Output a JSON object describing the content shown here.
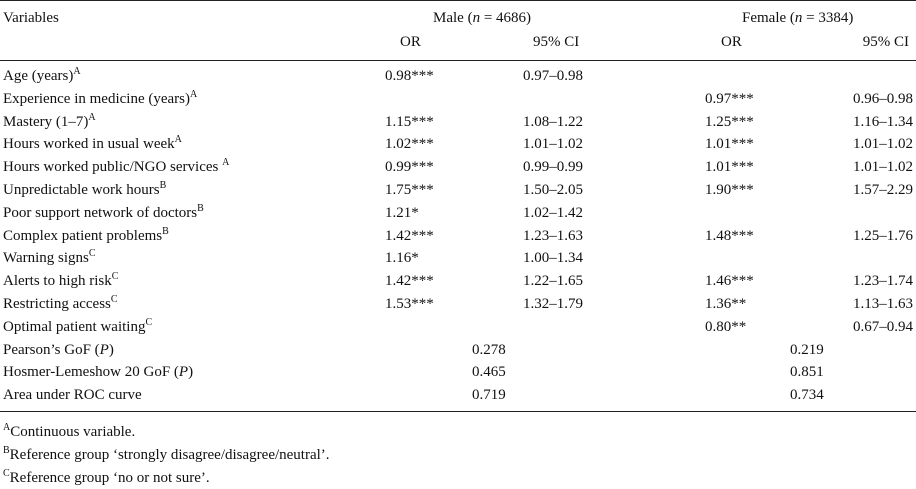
{
  "header": {
    "variables": "Variables",
    "male_group": "Male (n = 4686)",
    "male_label": "Male (",
    "male_n": "n",
    "male_count": " = 4686)",
    "female_label": "Female (",
    "female_n": "n",
    "female_count": " = 3384)",
    "or_label": "OR",
    "ci_label": "95% CI"
  },
  "rows": [
    {
      "variable": "Age (years)",
      "sup": "A",
      "male_or": "0.98***",
      "male_ci": "0.97–0.98",
      "female_or": "",
      "female_ci": ""
    },
    {
      "variable": "Experience in medicine (years)",
      "sup": "A",
      "male_or": "",
      "male_ci": "",
      "female_or": "0.97***",
      "female_ci": "0.96–0.98"
    },
    {
      "variable": "Mastery (1–7)",
      "sup": "A",
      "male_or": "1.15***",
      "male_ci": "1.08–1.22",
      "female_or": "1.25***",
      "female_ci": "1.16–1.34"
    },
    {
      "variable": "Hours worked in usual week",
      "sup": "A",
      "male_or": "1.02***",
      "male_ci": "1.01–1.02",
      "female_or": "1.01***",
      "female_ci": "1.01–1.02"
    },
    {
      "variable": "Hours worked public/NGO services ",
      "sup": "A",
      "male_or": "0.99***",
      "male_ci": "0.99–0.99",
      "female_or": "1.01***",
      "female_ci": "1.01–1.02"
    },
    {
      "variable": "Unpredictable work hours",
      "sup": "B",
      "male_or": "1.75***",
      "male_ci": "1.50–2.05",
      "female_or": "1.90***",
      "female_ci": "1.57–2.29"
    },
    {
      "variable": "Poor support network of doctors",
      "sup": "B",
      "male_or": "1.21*",
      "male_ci": "1.02–1.42",
      "female_or": "",
      "female_ci": ""
    },
    {
      "variable": "Complex patient problems",
      "sup": "B",
      "male_or": "1.42***",
      "male_ci": "1.23–1.63",
      "female_or": "1.48***",
      "female_ci": "1.25–1.76"
    },
    {
      "variable": "Warning signs",
      "sup": "C",
      "male_or": "1.16*",
      "male_ci": "1.00–1.34",
      "female_or": "",
      "female_ci": ""
    },
    {
      "variable": "Alerts to high risk",
      "sup": "C",
      "male_or": "1.42***",
      "male_ci": "1.22–1.65",
      "female_or": "1.46***",
      "female_ci": "1.23–1.74"
    },
    {
      "variable": "Restricting access",
      "sup": "C",
      "male_or": "1.53***",
      "male_ci": "1.32–1.79",
      "female_or": "1.36**",
      "female_ci": "1.13–1.63"
    },
    {
      "variable": "Optimal patient waiting",
      "sup": "C",
      "male_or": "",
      "male_ci": "",
      "female_or": "0.80**",
      "female_ci": "0.67–0.94"
    }
  ],
  "fit_rows": [
    {
      "label_pre": "Pearson’s GoF (",
      "label_italic": "P",
      "label_post": ")",
      "male": "0.278",
      "female": "0.219"
    },
    {
      "label_pre": "Hosmer-Lemeshow 20 GoF (",
      "label_italic": "P",
      "label_post": ")",
      "male": "0.465",
      "female": "0.851"
    },
    {
      "label_pre": "Area under ROC curve",
      "label_italic": "",
      "label_post": "",
      "male": "0.719",
      "female": "0.734"
    }
  ],
  "footnotes": [
    {
      "sup": "A",
      "text": "Continuous variable."
    },
    {
      "sup": "B",
      "text": "Reference group ‘strongly disagree/disagree/neutral’."
    },
    {
      "sup": "C",
      "text": "Reference group ‘no or not sure’."
    }
  ]
}
